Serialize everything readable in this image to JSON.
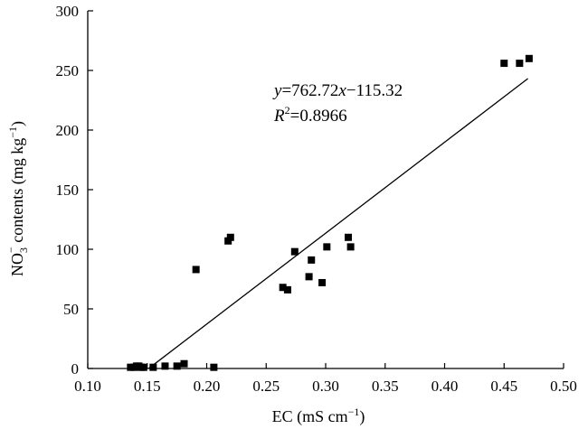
{
  "chart_data": {
    "type": "scatter",
    "title": "",
    "xlabel": {
      "prefix": "EC (mS cm",
      "sup": "−1",
      "suffix": ")"
    },
    "ylabel": {
      "prefix": "NO",
      "sub": "3",
      "sup1": "−",
      "mid": " contents (mg kg",
      "sup2": "−1",
      "suffix": ")"
    },
    "xlim": [
      0.1,
      0.5
    ],
    "ylim": [
      0,
      300
    ],
    "xticks": [
      "0.10",
      "0.15",
      "0.20",
      "0.25",
      "0.30",
      "0.35",
      "0.40",
      "0.45",
      "0.50"
    ],
    "yticks": [
      "0",
      "50",
      "100",
      "150",
      "200",
      "250",
      "300"
    ],
    "grid": false,
    "legend": "none",
    "annotation": {
      "equation": {
        "y": "y",
        "eq": "=762.72",
        "x": "x",
        "rest": "−115.32"
      },
      "r2": {
        "R": "R",
        "sup": "2",
        "rest": "=0.8966"
      }
    },
    "fit_line": {
      "slope": 762.72,
      "intercept": -115.32,
      "x_range": [
        0.1515,
        0.47
      ]
    },
    "points": [
      {
        "x": 0.136,
        "y": 1
      },
      {
        "x": 0.139,
        "y": 1
      },
      {
        "x": 0.141,
        "y": 2
      },
      {
        "x": 0.143,
        "y": 2
      },
      {
        "x": 0.145,
        "y": 1
      },
      {
        "x": 0.147,
        "y": 1
      },
      {
        "x": 0.155,
        "y": 1
      },
      {
        "x": 0.165,
        "y": 2
      },
      {
        "x": 0.175,
        "y": 2
      },
      {
        "x": 0.181,
        "y": 4
      },
      {
        "x": 0.191,
        "y": 83
      },
      {
        "x": 0.206,
        "y": 1
      },
      {
        "x": 0.218,
        "y": 107
      },
      {
        "x": 0.22,
        "y": 110
      },
      {
        "x": 0.264,
        "y": 68
      },
      {
        "x": 0.268,
        "y": 66
      },
      {
        "x": 0.274,
        "y": 98
      },
      {
        "x": 0.286,
        "y": 77
      },
      {
        "x": 0.288,
        "y": 91
      },
      {
        "x": 0.297,
        "y": 72
      },
      {
        "x": 0.301,
        "y": 102
      },
      {
        "x": 0.319,
        "y": 110
      },
      {
        "x": 0.321,
        "y": 102
      },
      {
        "x": 0.45,
        "y": 256
      },
      {
        "x": 0.463,
        "y": 256
      },
      {
        "x": 0.471,
        "y": 260
      }
    ]
  }
}
